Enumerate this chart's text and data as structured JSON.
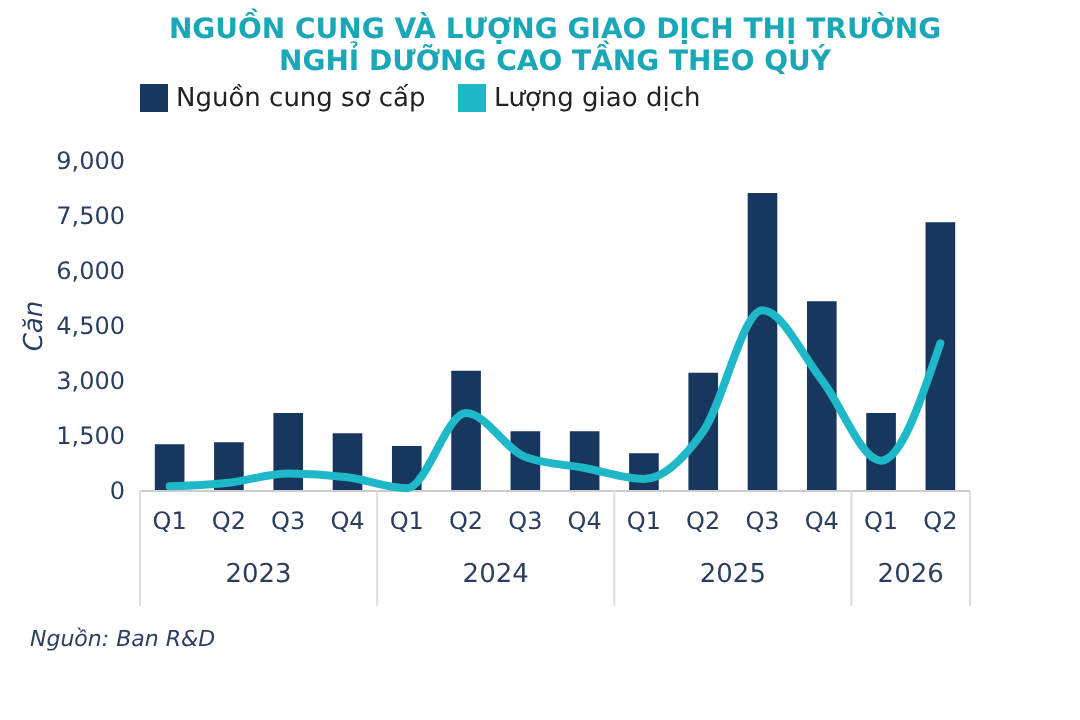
{
  "chart_data": {
    "type": "bar",
    "title": [
      "NGUỒN CUNG VÀ LƯỢNG GIAO DỊCH THỊ TRƯỜNG",
      "NGHỈ DƯỠNG CAO TẦNG THEO QUÝ"
    ],
    "categories": [
      "Q1",
      "Q2",
      "Q3",
      "Q4",
      "Q1",
      "Q2",
      "Q3",
      "Q4",
      "Q1",
      "Q2",
      "Q3",
      "Q4",
      "Q1",
      "Q2"
    ],
    "series": [
      {
        "name": "Nguồn cung sơ cấp",
        "color": "#17375e",
        "values": [
          1250,
          1300,
          2100,
          1550,
          1200,
          3250,
          1600,
          1600,
          1000,
          3200,
          8100,
          5150,
          2100,
          7300
        ]
      },
      {
        "name": "Lượng giao dịch",
        "type": "line",
        "color": "#1fb8c8",
        "values": [
          100,
          200,
          450,
          350,
          50,
          2100,
          900,
          600,
          300,
          1600,
          4900,
          3000,
          800,
          4000
        ]
      }
    ],
    "ylabel": "Căn",
    "ylim": [
      0,
      9000
    ],
    "yticks": [
      0,
      {
        "value": 1500,
        "label": "1,500"
      },
      {
        "value": 3000,
        "label": "3,000"
      },
      {
        "value": 4500,
        "label": "4,500"
      },
      {
        "value": 6000,
        "label": "6,000"
      },
      {
        "value": 7500,
        "label": "7,500"
      },
      {
        "value": 9000,
        "label": "9,000"
      }
    ],
    "grid": false,
    "legend": "top",
    "annotations": [
      "2023",
      "2024",
      "2025",
      "2026",
      "Nguồn: Ban R&D"
    ]
  }
}
